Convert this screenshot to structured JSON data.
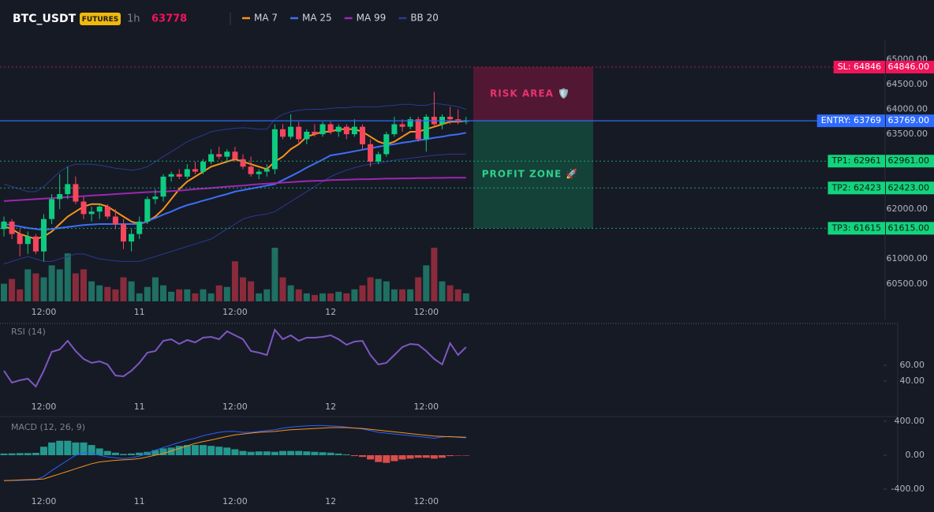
{
  "header": {
    "symbol": "BTC_USDT",
    "badge": "FUTURES",
    "interval": "1h",
    "price": 63778
  },
  "chart_data": [
    {
      "type": "candlestick",
      "categories": [
        null,
        null,
        null,
        null,
        null,
        "12:00",
        null,
        null,
        null,
        null,
        null,
        null,
        null,
        null,
        null,
        null,
        null,
        "11",
        null,
        null,
        null,
        null,
        null,
        null,
        null,
        null,
        null,
        null,
        null,
        "12:00",
        null,
        null,
        null,
        null,
        null,
        null,
        null,
        null,
        null,
        null,
        null,
        "12",
        null,
        null,
        null,
        null,
        null,
        null,
        null,
        null,
        null,
        null,
        null,
        "12:00",
        null,
        null,
        null,
        null,
        null
      ],
      "open": [
        61600,
        61750,
        61500,
        61300,
        61450,
        61150,
        61800,
        62200,
        62300,
        62500,
        62150,
        61900,
        61950,
        62050,
        61850,
        61700,
        61350,
        61500,
        61750,
        62200,
        62250,
        62650,
        62700,
        62650,
        62800,
        62750,
        62950,
        63100,
        63050,
        63150,
        63000,
        62850,
        62700,
        62750,
        62800,
        63600,
        63450,
        63650,
        63400,
        63550,
        63500,
        63700,
        63550,
        63650,
        63500,
        63650,
        63300,
        62950,
        63100,
        63500,
        63700,
        63650,
        63800,
        63400,
        63850,
        63700,
        63850,
        63800,
        63750
      ],
      "high": [
        61850,
        61800,
        61600,
        61550,
        61500,
        61900,
        62300,
        62700,
        62850,
        62650,
        62250,
        62050,
        62100,
        62100,
        62000,
        61800,
        61600,
        61850,
        62250,
        62400,
        62700,
        62750,
        62800,
        62900,
        62950,
        63000,
        63200,
        63250,
        63200,
        63250,
        63100,
        63050,
        62800,
        62900,
        63700,
        63700,
        63900,
        63750,
        63600,
        63700,
        63750,
        63750,
        63700,
        63700,
        63800,
        63700,
        63400,
        63150,
        63550,
        63850,
        63800,
        63850,
        63850,
        63900,
        64350,
        63900,
        64050,
        64000,
        63850
      ],
      "low": [
        61450,
        61400,
        61050,
        61100,
        61100,
        60950,
        61700,
        62000,
        62200,
        62100,
        61800,
        61750,
        61800,
        61800,
        61600,
        61200,
        61150,
        61400,
        61700,
        62100,
        62150,
        62550,
        62600,
        62600,
        62700,
        62700,
        62900,
        63000,
        62950,
        62950,
        62800,
        62650,
        62600,
        62650,
        62700,
        63400,
        63400,
        63300,
        63300,
        63450,
        63450,
        63500,
        63450,
        63400,
        63450,
        63200,
        62850,
        62900,
        63050,
        63450,
        63550,
        63600,
        63350,
        63150,
        63650,
        63600,
        63700,
        63700,
        63700
      ],
      "close": [
        61750,
        61500,
        61300,
        61450,
        61150,
        61800,
        62200,
        62300,
        62500,
        62150,
        61900,
        61950,
        62050,
        61850,
        61700,
        61350,
        61500,
        61750,
        62200,
        62250,
        62650,
        62700,
        62650,
        62800,
        62750,
        62950,
        63100,
        63050,
        63150,
        63000,
        62850,
        62700,
        62750,
        62800,
        63600,
        63450,
        63650,
        63400,
        63550,
        63500,
        63700,
        63550,
        63650,
        63500,
        63650,
        63300,
        62950,
        63100,
        63500,
        63700,
        63650,
        63800,
        63400,
        63850,
        63700,
        63850,
        63800,
        63750,
        63778
      ],
      "volume": [
        22,
        28,
        15,
        40,
        35,
        30,
        45,
        40,
        60,
        35,
        40,
        25,
        20,
        18,
        15,
        30,
        25,
        10,
        18,
        30,
        20,
        12,
        15,
        15,
        10,
        15,
        10,
        20,
        18,
        50,
        30,
        25,
        10,
        15,
        67,
        30,
        20,
        15,
        10,
        8,
        10,
        10,
        12,
        10,
        15,
        20,
        30,
        28,
        25,
        15,
        15,
        15,
        30,
        45,
        67,
        25,
        20,
        15,
        10
      ],
      "colors": {
        "up": "#0ecb81",
        "down": "#f6465d",
        "volume_up": "#1f6f62",
        "volume_down": "#8a2b3b"
      },
      "series": [
        {
          "name": "MA 7",
          "color": "#f7931a",
          "values": [
            61650,
            61600,
            61500,
            61450,
            61400,
            61450,
            61550,
            61700,
            61850,
            61950,
            62050,
            62100,
            62100,
            62050,
            61950,
            61850,
            61750,
            61700,
            61750,
            61850,
            62000,
            62200,
            62400,
            62550,
            62650,
            62750,
            62850,
            62900,
            62950,
            63000,
            62950,
            62900,
            62850,
            62800,
            62950,
            63050,
            63200,
            63300,
            63450,
            63500,
            63550,
            63550,
            63600,
            63600,
            63600,
            63550,
            63450,
            63350,
            63300,
            63350,
            63450,
            63550,
            63550,
            63600,
            63650,
            63700,
            63750,
            63750,
            63770
          ]
        },
        {
          "name": "MA 25",
          "color": "#3d6ef5",
          "values": [
            61700,
            61680,
            61650,
            61620,
            61600,
            61580,
            61600,
            61620,
            61640,
            61660,
            61680,
            61690,
            61700,
            61700,
            61700,
            61700,
            61700,
            61700,
            61760,
            61820,
            61890,
            61950,
            62020,
            62080,
            62120,
            62170,
            62210,
            62260,
            62300,
            62350,
            62380,
            62410,
            62440,
            62470,
            62500,
            62580,
            62660,
            62740,
            62830,
            62910,
            62990,
            63075,
            63100,
            63130,
            63160,
            63190,
            63220,
            63250,
            63280,
            63300,
            63330,
            63350,
            63380,
            63400,
            63430,
            63450,
            63480,
            63500,
            63530
          ]
        },
        {
          "name": "MA 99",
          "color": "#9c27b0",
          "values": [
            62160,
            62170,
            62180,
            62190,
            62200,
            62210,
            62220,
            62230,
            62240,
            62250,
            62260,
            62270,
            62280,
            62290,
            62300,
            62310,
            62320,
            62330,
            62340,
            62345,
            62350,
            62360,
            62370,
            62385,
            62400,
            62410,
            62420,
            62435,
            62450,
            62460,
            62470,
            62485,
            62500,
            62510,
            62520,
            62530,
            62540,
            62550,
            62560,
            62565,
            62570,
            62580,
            62585,
            62590,
            62595,
            62600,
            62600,
            62605,
            62610,
            62610,
            62615,
            62615,
            62620,
            62620,
            62625,
            62625,
            62630,
            62630,
            62630
          ]
        },
        {
          "name": "BB 20",
          "color": "#2a3a8f",
          "upper": [
            62500,
            62450,
            62400,
            62350,
            62350,
            62450,
            62600,
            62750,
            62850,
            62900,
            62900,
            62900,
            62880,
            62850,
            62820,
            62800,
            62780,
            62800,
            62850,
            62950,
            63050,
            63150,
            63250,
            63350,
            63420,
            63480,
            63550,
            63580,
            63600,
            63620,
            63630,
            63620,
            63600,
            63600,
            63800,
            63900,
            63950,
            63980,
            64000,
            64000,
            64000,
            64020,
            64030,
            64030,
            64050,
            64050,
            64050,
            64050,
            64070,
            64080,
            64100,
            64100,
            64080,
            64080,
            64120,
            64100,
            64080,
            64050,
            64000
          ],
          "lower": [
            60900,
            60950,
            61000,
            61050,
            61000,
            60950,
            60950,
            61000,
            61050,
            61100,
            61100,
            61050,
            61000,
            60980,
            60960,
            60950,
            60950,
            60950,
            61000,
            61050,
            61100,
            61150,
            61200,
            61250,
            61300,
            61350,
            61400,
            61500,
            61600,
            61700,
            61800,
            61850,
            61880,
            61900,
            61950,
            62050,
            62150,
            62250,
            62350,
            62450,
            62550,
            62650,
            62720,
            62780,
            62830,
            62870,
            62900,
            62920,
            62950,
            62980,
            63000,
            63020,
            63040,
            63060,
            63080,
            63090,
            63100,
            63100,
            63100
          ]
        }
      ],
      "ylim": [
        60150,
        65400
      ],
      "yticks": [
        {
          "value": 65000,
          "label": "65000.00"
        },
        {
          "value": 64500,
          "label": "64500.00"
        },
        {
          "value": 64000,
          "label": "64000.00"
        },
        {
          "value": 63500,
          "label": "63500.00"
        },
        {
          "value": 62000,
          "label": "62000.00"
        },
        {
          "value": 61000,
          "label": "61000.00"
        },
        {
          "value": 60500,
          "label": "60500.00"
        }
      ],
      "levels": [
        {
          "label": "SL: 64846",
          "value": 64846,
          "price_label": "64846.00",
          "color": "#f0145a",
          "text_color": "#ffffff",
          "style": "dotted"
        },
        {
          "label": "ENTRY: 63769",
          "value": 63769,
          "price_label": "63769.00",
          "color": "#2f6bff",
          "text_color": "#ffffff",
          "style": "solid"
        },
        {
          "label": "TP1: 62961",
          "value": 62961,
          "price_label": "62961.00",
          "color": "#13d37d",
          "text_color": "#0b1a12",
          "style": "dotted"
        },
        {
          "label": "TP2: 62423",
          "value": 62423,
          "price_label": "62423.00",
          "color": "#13d37d",
          "text_color": "#0b1a12",
          "style": "dotted"
        },
        {
          "label": "TP3: 61615",
          "value": 61615,
          "price_label": "61615.00",
          "color": "#13d37d",
          "text_color": "#0b1a12",
          "style": "dotted"
        }
      ],
      "zones": [
        {
          "label": "RISK AREA 🛡️",
          "color": "#f0145a",
          "text_color": "#e8336f"
        },
        {
          "label": "PROFIT ZONE 🚀",
          "color": "#0ecb81",
          "text_color": "#2fd08a"
        }
      ]
    },
    {
      "type": "line",
      "title": "RSI (14)",
      "color": "#7e57c2",
      "values": [
        53,
        38,
        41,
        43,
        33,
        53,
        77,
        80,
        91,
        78,
        68,
        63,
        65,
        61,
        47,
        46,
        53,
        63,
        76,
        78,
        91,
        93,
        87,
        92,
        89,
        95,
        96,
        93,
        103,
        98,
        93,
        78,
        76,
        73,
        105,
        93,
        98,
        91,
        95,
        95,
        96,
        98,
        93,
        86,
        90,
        91,
        73,
        61,
        63,
        73,
        83,
        87,
        86,
        78,
        68,
        61,
        88,
        73,
        83
      ],
      "ylim": [
        20,
        113
      ],
      "yticks": [
        {
          "value": 60,
          "label": "60.00"
        },
        {
          "value": 40,
          "label": "40.00"
        }
      ]
    },
    {
      "type": "macd",
      "title": "MACD (12, 26, 9)",
      "macd": {
        "color": "#2962ff",
        "values": [
          -300,
          -298,
          -296,
          -293,
          -290,
          -250,
          -180,
          -120,
          -60,
          0,
          30,
          20,
          0,
          -20,
          -30,
          -40,
          -30,
          -10,
          20,
          60,
          90,
          120,
          150,
          180,
          200,
          230,
          250,
          270,
          280,
          280,
          270,
          270,
          280,
          290,
          300,
          320,
          330,
          340,
          345,
          350,
          350,
          345,
          340,
          330,
          320,
          310,
          290,
          270,
          260,
          250,
          240,
          230,
          220,
          210,
          200,
          215,
          220,
          210,
          205
        ]
      },
      "signal": {
        "color": "#f7931a",
        "values": [
          -300,
          -296,
          -292,
          -288,
          -284,
          -280,
          -250,
          -220,
          -190,
          -160,
          -130,
          -100,
          -80,
          -70,
          -60,
          -55,
          -50,
          -40,
          -20,
          0,
          20,
          50,
          80,
          110,
          140,
          160,
          180,
          200,
          220,
          240,
          250,
          260,
          270,
          275,
          280,
          290,
          300,
          305,
          310,
          315,
          320,
          325,
          325,
          325,
          320,
          315,
          305,
          295,
          285,
          275,
          265,
          255,
          245,
          235,
          225,
          220,
          218,
          215,
          212
        ]
      },
      "histogram": {
        "up_color": "#26a69a",
        "down_color": "#ef5350",
        "values": [
          20,
          22,
          25,
          25,
          28,
          100,
          150,
          170,
          170,
          150,
          150,
          120,
          80,
          50,
          30,
          15,
          20,
          30,
          40,
          60,
          80,
          90,
          110,
          120,
          120,
          120,
          110,
          100,
          90,
          70,
          50,
          40,
          45,
          45,
          40,
          50,
          50,
          50,
          45,
          40,
          35,
          30,
          20,
          10,
          -10,
          -20,
          -50,
          -80,
          -90,
          -70,
          -50,
          -40,
          -30,
          -30,
          -40,
          -30,
          -10,
          -5,
          -5
        ]
      },
      "ylim": [
        -446,
        437
      ],
      "yticks": [
        {
          "value": 400,
          "label": "400.00"
        },
        {
          "value": 0,
          "label": "0.00"
        },
        {
          "value": -400,
          "label": "-400.00"
        }
      ]
    }
  ]
}
